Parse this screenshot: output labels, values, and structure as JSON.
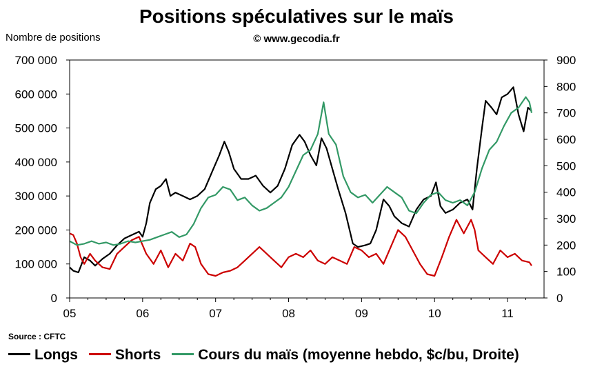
{
  "title": "Positions spéculatives sur le maïs",
  "subtitle": "© www.gecodia.fr",
  "source": "Source : CFTC",
  "chart_data": {
    "type": "line",
    "x_ticks": [
      "05",
      "06",
      "07",
      "08",
      "09",
      "10",
      "11"
    ],
    "xlim": [
      2005.0,
      2011.5
    ],
    "left_axis": {
      "label": "Nombre de positions",
      "ylim": [
        0,
        700000
      ],
      "ticks": [
        0,
        100000,
        200000,
        300000,
        400000,
        500000,
        600000,
        700000
      ],
      "tick_labels": [
        "0",
        "100 000",
        "200 000",
        "300 000",
        "400 000",
        "500 000",
        "600 000",
        "700 000"
      ]
    },
    "right_axis": {
      "label": "",
      "ylim": [
        0,
        900
      ],
      "ticks": [
        0,
        100,
        200,
        300,
        400,
        500,
        600,
        700,
        800,
        900
      ],
      "tick_labels": [
        "0",
        "100",
        "200",
        "300",
        "400",
        "500",
        "600",
        "700",
        "800",
        "900"
      ]
    },
    "grid": false,
    "legend_position": "bottom",
    "series": [
      {
        "name": "Longs",
        "color": "#000000",
        "axis": "left",
        "points": [
          [
            2005.0,
            90000
          ],
          [
            2005.05,
            80000
          ],
          [
            2005.12,
            75000
          ],
          [
            2005.2,
            120000
          ],
          [
            2005.28,
            110000
          ],
          [
            2005.35,
            95000
          ],
          [
            2005.45,
            115000
          ],
          [
            2005.55,
            130000
          ],
          [
            2005.65,
            155000
          ],
          [
            2005.75,
            175000
          ],
          [
            2005.85,
            185000
          ],
          [
            2005.95,
            195000
          ],
          [
            2006.0,
            180000
          ],
          [
            2006.05,
            220000
          ],
          [
            2006.1,
            280000
          ],
          [
            2006.18,
            320000
          ],
          [
            2006.25,
            330000
          ],
          [
            2006.32,
            350000
          ],
          [
            2006.38,
            300000
          ],
          [
            2006.45,
            310000
          ],
          [
            2006.55,
            300000
          ],
          [
            2006.65,
            290000
          ],
          [
            2006.75,
            300000
          ],
          [
            2006.85,
            320000
          ],
          [
            2006.95,
            370000
          ],
          [
            2007.05,
            420000
          ],
          [
            2007.12,
            460000
          ],
          [
            2007.18,
            430000
          ],
          [
            2007.25,
            380000
          ],
          [
            2007.35,
            350000
          ],
          [
            2007.45,
            350000
          ],
          [
            2007.55,
            360000
          ],
          [
            2007.65,
            330000
          ],
          [
            2007.75,
            310000
          ],
          [
            2007.85,
            330000
          ],
          [
            2007.95,
            380000
          ],
          [
            2008.05,
            450000
          ],
          [
            2008.15,
            480000
          ],
          [
            2008.22,
            460000
          ],
          [
            2008.3,
            420000
          ],
          [
            2008.38,
            390000
          ],
          [
            2008.45,
            470000
          ],
          [
            2008.52,
            440000
          ],
          [
            2008.6,
            380000
          ],
          [
            2008.68,
            320000
          ],
          [
            2008.78,
            250000
          ],
          [
            2008.88,
            160000
          ],
          [
            2008.95,
            150000
          ],
          [
            2009.05,
            155000
          ],
          [
            2009.12,
            160000
          ],
          [
            2009.2,
            200000
          ],
          [
            2009.3,
            290000
          ],
          [
            2009.38,
            270000
          ],
          [
            2009.45,
            240000
          ],
          [
            2009.55,
            220000
          ],
          [
            2009.65,
            210000
          ],
          [
            2009.75,
            260000
          ],
          [
            2009.85,
            290000
          ],
          [
            2009.95,
            300000
          ],
          [
            2010.02,
            340000
          ],
          [
            2010.08,
            270000
          ],
          [
            2010.15,
            250000
          ],
          [
            2010.25,
            260000
          ],
          [
            2010.35,
            280000
          ],
          [
            2010.45,
            290000
          ],
          [
            2010.52,
            260000
          ],
          [
            2010.58,
            380000
          ],
          [
            2010.65,
            500000
          ],
          [
            2010.7,
            580000
          ],
          [
            2010.78,
            560000
          ],
          [
            2010.85,
            540000
          ],
          [
            2010.92,
            590000
          ],
          [
            2011.0,
            600000
          ],
          [
            2011.08,
            620000
          ],
          [
            2011.15,
            540000
          ],
          [
            2011.22,
            490000
          ],
          [
            2011.28,
            560000
          ],
          [
            2011.33,
            550000
          ]
        ]
      },
      {
        "name": "Shorts",
        "color": "#cc0000",
        "axis": "left",
        "points": [
          [
            2005.0,
            190000
          ],
          [
            2005.05,
            185000
          ],
          [
            2005.1,
            160000
          ],
          [
            2005.15,
            120000
          ],
          [
            2005.2,
            100000
          ],
          [
            2005.28,
            130000
          ],
          [
            2005.35,
            110000
          ],
          [
            2005.45,
            90000
          ],
          [
            2005.55,
            85000
          ],
          [
            2005.65,
            130000
          ],
          [
            2005.75,
            150000
          ],
          [
            2005.85,
            170000
          ],
          [
            2005.95,
            180000
          ],
          [
            2006.05,
            130000
          ],
          [
            2006.15,
            100000
          ],
          [
            2006.25,
            140000
          ],
          [
            2006.35,
            90000
          ],
          [
            2006.45,
            130000
          ],
          [
            2006.55,
            110000
          ],
          [
            2006.65,
            160000
          ],
          [
            2006.72,
            150000
          ],
          [
            2006.8,
            100000
          ],
          [
            2006.9,
            70000
          ],
          [
            2007.0,
            65000
          ],
          [
            2007.1,
            75000
          ],
          [
            2007.2,
            80000
          ],
          [
            2007.3,
            90000
          ],
          [
            2007.4,
            110000
          ],
          [
            2007.5,
            130000
          ],
          [
            2007.6,
            150000
          ],
          [
            2007.7,
            130000
          ],
          [
            2007.8,
            110000
          ],
          [
            2007.9,
            90000
          ],
          [
            2008.0,
            120000
          ],
          [
            2008.1,
            130000
          ],
          [
            2008.2,
            120000
          ],
          [
            2008.3,
            140000
          ],
          [
            2008.4,
            110000
          ],
          [
            2008.5,
            100000
          ],
          [
            2008.6,
            120000
          ],
          [
            2008.7,
            110000
          ],
          [
            2008.8,
            100000
          ],
          [
            2008.9,
            150000
          ],
          [
            2009.0,
            140000
          ],
          [
            2009.1,
            120000
          ],
          [
            2009.2,
            130000
          ],
          [
            2009.3,
            100000
          ],
          [
            2009.4,
            150000
          ],
          [
            2009.5,
            200000
          ],
          [
            2009.6,
            180000
          ],
          [
            2009.7,
            140000
          ],
          [
            2009.8,
            100000
          ],
          [
            2009.9,
            70000
          ],
          [
            2010.0,
            65000
          ],
          [
            2010.1,
            120000
          ],
          [
            2010.2,
            180000
          ],
          [
            2010.3,
            230000
          ],
          [
            2010.4,
            190000
          ],
          [
            2010.5,
            230000
          ],
          [
            2010.55,
            200000
          ],
          [
            2010.6,
            140000
          ],
          [
            2010.7,
            120000
          ],
          [
            2010.8,
            100000
          ],
          [
            2010.9,
            140000
          ],
          [
            2011.0,
            120000
          ],
          [
            2011.1,
            130000
          ],
          [
            2011.2,
            110000
          ],
          [
            2011.3,
            105000
          ],
          [
            2011.33,
            95000
          ]
        ]
      },
      {
        "name": "Cours du maïs (moyenne hebdo, $c/bu, Droite)",
        "color": "#339966",
        "axis": "right",
        "points": [
          [
            2005.0,
            215
          ],
          [
            2005.1,
            200
          ],
          [
            2005.2,
            205
          ],
          [
            2005.3,
            215
          ],
          [
            2005.4,
            205
          ],
          [
            2005.5,
            210
          ],
          [
            2005.6,
            200
          ],
          [
            2005.7,
            205
          ],
          [
            2005.8,
            215
          ],
          [
            2005.9,
            210
          ],
          [
            2006.0,
            215
          ],
          [
            2006.1,
            220
          ],
          [
            2006.2,
            230
          ],
          [
            2006.3,
            240
          ],
          [
            2006.4,
            250
          ],
          [
            2006.5,
            230
          ],
          [
            2006.6,
            240
          ],
          [
            2006.7,
            280
          ],
          [
            2006.8,
            340
          ],
          [
            2006.9,
            380
          ],
          [
            2007.0,
            390
          ],
          [
            2007.1,
            420
          ],
          [
            2007.2,
            410
          ],
          [
            2007.3,
            370
          ],
          [
            2007.4,
            380
          ],
          [
            2007.5,
            350
          ],
          [
            2007.6,
            330
          ],
          [
            2007.7,
            340
          ],
          [
            2007.8,
            360
          ],
          [
            2007.9,
            380
          ],
          [
            2008.0,
            420
          ],
          [
            2008.1,
            480
          ],
          [
            2008.2,
            540
          ],
          [
            2008.3,
            560
          ],
          [
            2008.4,
            620
          ],
          [
            2008.48,
            740
          ],
          [
            2008.55,
            620
          ],
          [
            2008.65,
            580
          ],
          [
            2008.75,
            460
          ],
          [
            2008.85,
            400
          ],
          [
            2008.95,
            380
          ],
          [
            2009.05,
            390
          ],
          [
            2009.15,
            360
          ],
          [
            2009.25,
            390
          ],
          [
            2009.35,
            420
          ],
          [
            2009.45,
            400
          ],
          [
            2009.55,
            380
          ],
          [
            2009.65,
            330
          ],
          [
            2009.75,
            320
          ],
          [
            2009.85,
            360
          ],
          [
            2009.95,
            390
          ],
          [
            2010.05,
            400
          ],
          [
            2010.15,
            370
          ],
          [
            2010.25,
            360
          ],
          [
            2010.35,
            370
          ],
          [
            2010.45,
            350
          ],
          [
            2010.55,
            400
          ],
          [
            2010.65,
            490
          ],
          [
            2010.75,
            560
          ],
          [
            2010.85,
            590
          ],
          [
            2010.95,
            650
          ],
          [
            2011.05,
            700
          ],
          [
            2011.15,
            720
          ],
          [
            2011.25,
            760
          ],
          [
            2011.3,
            740
          ],
          [
            2011.33,
            700
          ]
        ]
      }
    ]
  }
}
